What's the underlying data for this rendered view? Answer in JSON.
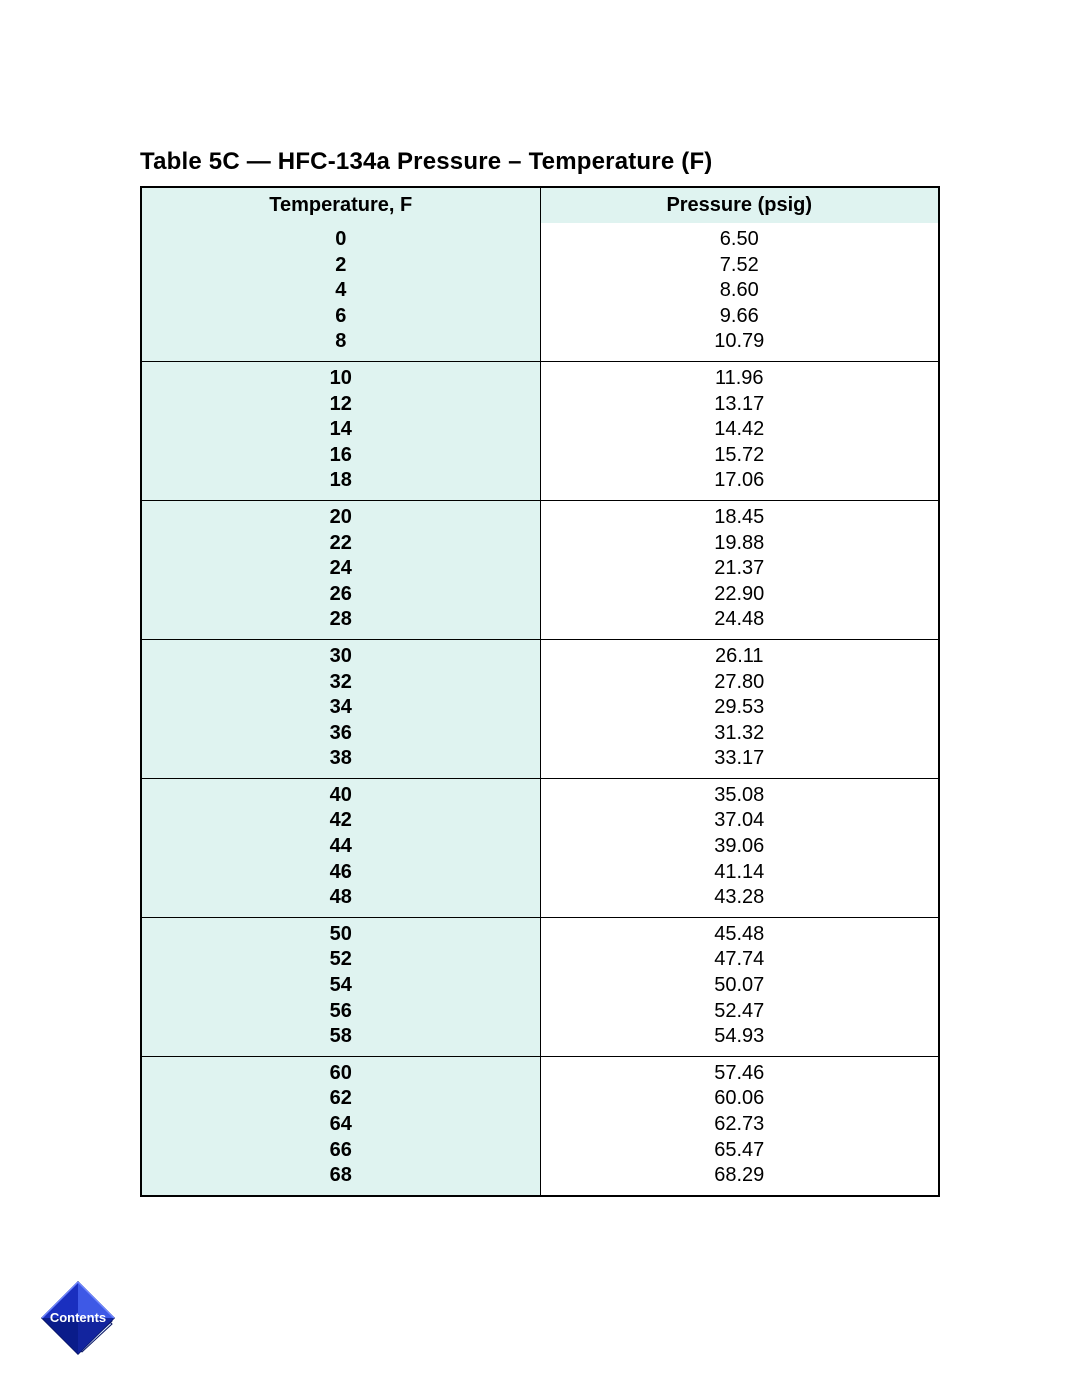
{
  "title": "Table 5C — HFC-134a Pressure – Temperature (F)",
  "table": {
    "type": "table",
    "columns": [
      "Temperature, F",
      "Pressure (psig)"
    ],
    "header_bg": "#dff3f0",
    "header_fontsize": 20,
    "header_fontweight": "bold",
    "body_fontsize": 20,
    "temp_col_bg": "#dff3f0",
    "press_col_bg": "#ffffff",
    "temp_fontweight": "bold",
    "press_fontweight": "normal",
    "border_color": "#000000",
    "outer_border_width": 2,
    "inner_border_width": 1.5,
    "column_widths_pct": [
      50,
      50
    ],
    "groups": [
      {
        "temps": [
          "0",
          "2",
          "4",
          "6",
          "8"
        ],
        "pressures": [
          "6.50",
          "7.52",
          "8.60",
          "9.66",
          "10.79"
        ]
      },
      {
        "temps": [
          "10",
          "12",
          "14",
          "16",
          "18"
        ],
        "pressures": [
          "11.96",
          "13.17",
          "14.42",
          "15.72",
          "17.06"
        ]
      },
      {
        "temps": [
          "20",
          "22",
          "24",
          "26",
          "28"
        ],
        "pressures": [
          "18.45",
          "19.88",
          "21.37",
          "22.90",
          "24.48"
        ]
      },
      {
        "temps": [
          "30",
          "32",
          "34",
          "36",
          "38"
        ],
        "pressures": [
          "26.11",
          "27.80",
          "29.53",
          "31.32",
          "33.17"
        ]
      },
      {
        "temps": [
          "40",
          "42",
          "44",
          "46",
          "48"
        ],
        "pressures": [
          "35.08",
          "37.04",
          "39.06",
          "41.14",
          "43.28"
        ]
      },
      {
        "temps": [
          "50",
          "52",
          "54",
          "56",
          "58"
        ],
        "pressures": [
          "45.48",
          "47.74",
          "50.07",
          "52.47",
          "54.93"
        ]
      },
      {
        "temps": [
          "60",
          "62",
          "64",
          "66",
          "68"
        ],
        "pressures": [
          "57.46",
          "60.06",
          "62.73",
          "65.47",
          "68.29"
        ]
      }
    ]
  },
  "contents_button": {
    "label": "Contents",
    "fill_top": "#1a2fbf",
    "fill_bottom": "#0a1c8a",
    "edge_light": "#3e59e6",
    "edge_dark": "#061260",
    "page_color": "#d9e8ff"
  }
}
